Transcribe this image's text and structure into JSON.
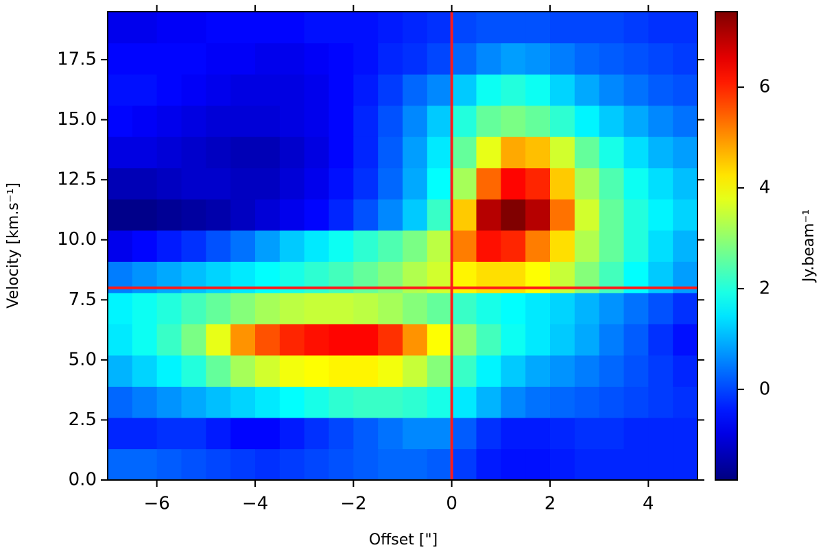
{
  "chart_data": {
    "type": "heatmap",
    "x_label": "Offset [\"]",
    "y_label": "Velocity [km.s⁻¹]",
    "colorbar_label": "Jy.beam⁻¹",
    "colormap": "jet",
    "xlim": [
      -7,
      5
    ],
    "ylim": [
      0,
      19.5
    ],
    "xticks": [
      {
        "value": -6,
        "label": "−6"
      },
      {
        "value": -4,
        "label": "−4"
      },
      {
        "value": -2,
        "label": "−2"
      },
      0,
      2,
      4
    ],
    "yticks": [
      {
        "value": 0,
        "label": "0.0"
      },
      {
        "value": 2.5,
        "label": "2.5"
      },
      {
        "value": 5,
        "label": "5.0"
      },
      {
        "value": 7.5,
        "label": "7.5"
      },
      {
        "value": 10,
        "label": "10.0"
      },
      {
        "value": 12.5,
        "label": "12.5"
      },
      {
        "value": 15,
        "label": "15.0"
      },
      {
        "value": 17.5,
        "label": "17.5"
      }
    ],
    "clim": [
      -1.8,
      7.5
    ],
    "cticks": [
      0,
      2,
      4,
      6
    ],
    "reference_lines": {
      "x": 0,
      "y": 8,
      "color": "#ff1a1a"
    },
    "x": [
      -6.75,
      -6.25,
      -5.75,
      -5.25,
      -4.75,
      -4.25,
      -3.75,
      -3.25,
      -2.75,
      -2.25,
      -1.75,
      -1.25,
      -0.75,
      -0.25,
      0.25,
      0.75,
      1.25,
      1.75,
      2.25,
      2.75,
      3.25,
      3.75,
      4.25,
      4.75
    ],
    "y": [
      0.65,
      1.95,
      3.25,
      4.55,
      5.85,
      7.15,
      8.45,
      9.75,
      11.05,
      12.35,
      13.65,
      14.95,
      16.25,
      17.55,
      18.85
    ],
    "values": [
      [
        0.3,
        0.3,
        0.2,
        0.1,
        0,
        -0.1,
        -0.2,
        -0.1,
        0,
        0.1,
        0.2,
        0.3,
        0.3,
        0.2,
        -0.1,
        -0.4,
        -0.5,
        -0.5,
        -0.4,
        -0.3,
        -0.3,
        -0.3,
        -0.3,
        -0.3
      ],
      [
        -0.3,
        -0.3,
        -0.2,
        -0.2,
        -0.4,
        -0.6,
        -0.6,
        -0.4,
        -0.2,
        0,
        0.2,
        0.4,
        0.6,
        0.6,
        0.2,
        -0.2,
        -0.4,
        -0.4,
        -0.3,
        -0.2,
        -0.2,
        -0.3,
        -0.3,
        -0.3
      ],
      [
        0.3,
        0.5,
        0.7,
        0.9,
        1.1,
        1.3,
        1.5,
        1.7,
        1.9,
        2.1,
        2.2,
        2.2,
        2.1,
        1.9,
        1.5,
        1.0,
        0.6,
        0.4,
        0.3,
        0.2,
        0.1,
        0,
        -0.1,
        -0.2
      ],
      [
        1.0,
        1.3,
        1.6,
        2.0,
        2.6,
        3.2,
        3.6,
        3.9,
        4.0,
        4.1,
        4.1,
        3.9,
        3.5,
        2.9,
        2.2,
        1.6,
        1.2,
        0.9,
        0.7,
        0.5,
        0.3,
        0.1,
        -0.1,
        -0.3
      ],
      [
        1.5,
        1.8,
        2.2,
        2.8,
        3.8,
        5.0,
        5.6,
        6.0,
        6.2,
        6.3,
        6.3,
        5.9,
        5.0,
        4.0,
        3.0,
        2.3,
        1.8,
        1.5,
        1.2,
        0.9,
        0.5,
        0.2,
        -0.2,
        -0.5
      ],
      [
        1.6,
        1.8,
        2.0,
        2.3,
        2.6,
        2.9,
        3.2,
        3.4,
        3.5,
        3.5,
        3.4,
        3.2,
        2.9,
        2.6,
        2.2,
        1.9,
        1.7,
        1.5,
        1.3,
        1.0,
        0.7,
        0.4,
        0.1,
        -0.2
      ],
      [
        0.5,
        0.7,
        0.9,
        1.1,
        1.3,
        1.5,
        1.7,
        1.9,
        2.1,
        2.3,
        2.6,
        2.9,
        3.3,
        3.6,
        4.1,
        4.3,
        4.3,
        4.0,
        3.5,
        2.9,
        2.3,
        1.7,
        1.2,
        0.8
      ],
      [
        -0.8,
        -0.6,
        -0.4,
        -0.2,
        0.1,
        0.4,
        0.8,
        1.2,
        1.5,
        1.8,
        2.1,
        2.4,
        2.8,
        3.4,
        5.2,
        6.2,
        6.0,
        5.2,
        4.3,
        3.3,
        2.6,
        2.0,
        1.4,
        1.0
      ],
      [
        -1.7,
        -1.7,
        -1.6,
        -1.5,
        -1.4,
        -1.2,
        -1.0,
        -0.8,
        -0.6,
        -0.3,
        0.1,
        0.6,
        1.2,
        2.2,
        4.5,
        7.0,
        7.5,
        7.0,
        5.3,
        3.6,
        2.6,
        2.0,
        1.6,
        1.3
      ],
      [
        -1.3,
        -1.3,
        -1.2,
        -1.1,
        -1.1,
        -1.2,
        -1.2,
        -1.0,
        -0.8,
        -0.5,
        -0.2,
        0.3,
        0.9,
        1.7,
        3.2,
        5.4,
        6.3,
        6.0,
        4.5,
        3.2,
        2.4,
        1.8,
        1.4,
        1.1
      ],
      [
        -0.9,
        -0.9,
        -1.0,
        -1.1,
        -1.2,
        -1.3,
        -1.3,
        -1.1,
        -0.9,
        -0.6,
        -0.3,
        0.2,
        0.8,
        1.5,
        2.6,
        3.8,
        4.8,
        4.6,
        3.6,
        2.6,
        1.9,
        1.4,
        1.0,
        0.8
      ],
      [
        -0.6,
        -0.7,
        -0.8,
        -0.9,
        -1.0,
        -1.0,
        -1.0,
        -0.9,
        -0.8,
        -0.6,
        -0.3,
        0.1,
        0.6,
        1.2,
        2.0,
        2.6,
        2.8,
        2.6,
        2.1,
        1.6,
        1.2,
        0.9,
        0.6,
        0.4
      ],
      [
        -0.5,
        -0.5,
        -0.6,
        -0.7,
        -0.8,
        -0.9,
        -0.9,
        -0.9,
        -0.8,
        -0.6,
        -0.4,
        -0.1,
        0.3,
        0.6,
        1.2,
        1.8,
        2.0,
        1.8,
        1.3,
        0.9,
        0.6,
        0.4,
        0.2,
        0.1
      ],
      [
        -0.6,
        -0.6,
        -0.6,
        -0.6,
        -0.7,
        -0.7,
        -0.8,
        -0.8,
        -0.7,
        -0.6,
        -0.5,
        -0.3,
        -0.2,
        0,
        0.3,
        0.6,
        0.8,
        0.7,
        0.5,
        0.3,
        0.2,
        0.1,
        0,
        -0.1
      ],
      [
        -0.8,
        -0.8,
        -0.7,
        -0.7,
        -0.6,
        -0.6,
        -0.6,
        -0.6,
        -0.5,
        -0.5,
        -0.5,
        -0.4,
        -0.3,
        -0.2,
        0,
        0.1,
        0.1,
        0.1,
        0,
        0,
        0,
        -0.1,
        -0.2,
        -0.2
      ]
    ]
  }
}
